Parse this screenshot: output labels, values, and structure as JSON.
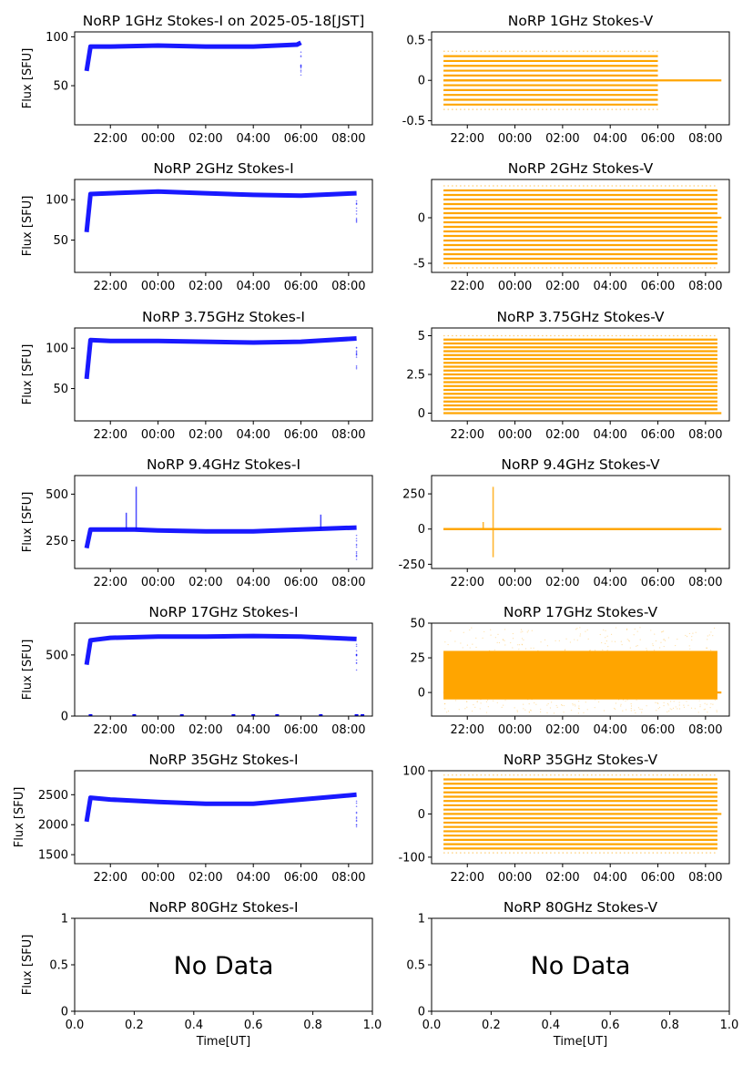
{
  "figure": {
    "x_tick_labels_time": [
      "22:00",
      "00:00",
      "02:00",
      "04:00",
      "06:00",
      "08:00"
    ],
    "x_tick_labels_unit": [
      "0.0",
      "0.2",
      "0.4",
      "0.6",
      "0.8",
      "1.0"
    ],
    "xlabel": "Time[UT]",
    "ylabel": "Flux [SFU]",
    "no_data_text": "No Data"
  },
  "colors": {
    "stokes_i": "#0000ff",
    "stokes_v": "#ffa500"
  },
  "chart_data": [
    {
      "type": "line",
      "title": "NoRP 1GHz Stokes-I on 2025-05-18[JST]",
      "ylabel": "Flux [SFU]",
      "x_range": [
        "20:30",
        "09:00"
      ],
      "ylim": [
        10,
        105
      ],
      "yticks": [
        50,
        100
      ],
      "series": [
        {
          "name": "",
          "x": [
            "21:00",
            "21:10",
            "22:00",
            "00:00",
            "02:00",
            "04:00",
            "05:50",
            "06:00"
          ],
          "values": [
            65,
            90,
            90,
            91,
            90,
            90,
            92,
            94
          ]
        }
      ]
    },
    {
      "type": "scatter",
      "title": "NoRP 1GHz Stokes-V",
      "x_range": [
        "20:30",
        "09:00"
      ],
      "ylim": [
        -0.55,
        0.6
      ],
      "yticks": [
        -0.5,
        0.0,
        0.5
      ],
      "levels": [
        -0.3,
        -0.24,
        -0.18,
        -0.12,
        -0.06,
        0,
        0.06,
        0.12,
        0.18,
        0.24,
        0.3
      ],
      "series": [
        {
          "name": "",
          "x_start": "21:00",
          "x_end": "06:00",
          "zero_to": "08:40"
        }
      ]
    },
    {
      "type": "line",
      "title": "NoRP 2GHz Stokes-I",
      "ylabel": "Flux [SFU]",
      "x_range": [
        "20:30",
        "09:00"
      ],
      "ylim": [
        10,
        125
      ],
      "yticks": [
        50,
        100
      ],
      "series": [
        {
          "name": "",
          "x": [
            "21:00",
            "21:10",
            "22:00",
            "00:00",
            "02:00",
            "04:00",
            "06:00",
            "08:20"
          ],
          "values": [
            60,
            107,
            108,
            110,
            108,
            106,
            105,
            108
          ]
        }
      ]
    },
    {
      "type": "scatter",
      "title": "NoRP 2GHz Stokes-V",
      "x_range": [
        "20:30",
        "09:00"
      ],
      "ylim": [
        -6,
        4.2
      ],
      "yticks": [
        -5,
        0
      ],
      "levels": [
        -5,
        -4.5,
        -4,
        -3.5,
        -3,
        -2.5,
        -2,
        -1.5,
        -1,
        -0.5,
        0,
        0.5,
        1,
        1.5,
        2,
        2.5,
        3
      ],
      "series": [
        {
          "name": "",
          "x_start": "21:00",
          "x_end": "08:30",
          "zero_to": "08:40"
        }
      ]
    },
    {
      "type": "line",
      "title": "NoRP 3.75GHz Stokes-I",
      "ylabel": "Flux [SFU]",
      "x_range": [
        "20:30",
        "09:00"
      ],
      "ylim": [
        10,
        125
      ],
      "yticks": [
        50,
        100
      ],
      "series": [
        {
          "name": "",
          "x": [
            "21:00",
            "21:10",
            "22:00",
            "00:00",
            "02:00",
            "04:00",
            "06:00",
            "08:20"
          ],
          "values": [
            62,
            110,
            109,
            109,
            108,
            107,
            108,
            112
          ]
        }
      ]
    },
    {
      "type": "scatter",
      "title": "NoRP 3.75GHz Stokes-V",
      "x_range": [
        "20:30",
        "09:00"
      ],
      "ylim": [
        -0.5,
        5.5
      ],
      "yticks": [
        0.0,
        2.5,
        5.0
      ],
      "levels": [
        0.25,
        0.5,
        0.75,
        1,
        1.25,
        1.5,
        1.75,
        2,
        2.25,
        2.5,
        2.75,
        3,
        3.25,
        3.5,
        3.75,
        4,
        4.25,
        4.5,
        4.75
      ],
      "series": [
        {
          "name": "",
          "x_start": "21:00",
          "x_end": "08:30",
          "zero_to": "08:40"
        }
      ]
    },
    {
      "type": "line",
      "title": "NoRP 9.4GHz Stokes-I",
      "ylabel": "Flux [SFU]",
      "x_range": [
        "20:30",
        "09:00"
      ],
      "ylim": [
        100,
        600
      ],
      "yticks": [
        250,
        500
      ],
      "series": [
        {
          "name": "",
          "x": [
            "21:00",
            "21:10",
            "22:00",
            "23:00",
            "00:00",
            "02:00",
            "04:00",
            "06:00",
            "08:20"
          ],
          "values": [
            210,
            310,
            310,
            310,
            305,
            300,
            300,
            310,
            320
          ]
        }
      ],
      "spikes": [
        {
          "x": "22:40",
          "value": 400
        },
        {
          "x": "23:05",
          "value": 540
        },
        {
          "x": "06:50",
          "value": 390
        }
      ]
    },
    {
      "type": "scatter",
      "title": "NoRP 9.4GHz Stokes-V",
      "x_range": [
        "20:30",
        "09:00"
      ],
      "ylim": [
        -280,
        380
      ],
      "yticks": [
        -250,
        0,
        250
      ],
      "levels": [
        0
      ],
      "series": [
        {
          "name": "",
          "x_start": "21:00",
          "x_end": "08:30",
          "zero_to": "08:40"
        }
      ],
      "spikes": [
        {
          "x": "22:40",
          "value": 50
        },
        {
          "x": "23:05",
          "value": -200
        },
        {
          "x": "23:05",
          "value": 300
        }
      ]
    },
    {
      "type": "line",
      "title": "NoRP 17GHz Stokes-I",
      "ylabel": "Flux [SFU]",
      "x_range": [
        "20:30",
        "09:00"
      ],
      "ylim": [
        0,
        760
      ],
      "yticks": [
        0,
        500
      ],
      "series": [
        {
          "name": "",
          "x": [
            "21:00",
            "21:10",
            "22:00",
            "00:00",
            "02:00",
            "04:00",
            "06:00",
            "08:20"
          ],
          "values": [
            420,
            620,
            640,
            650,
            650,
            655,
            650,
            630
          ]
        }
      ]
    },
    {
      "type": "scatter",
      "title": "NoRP 17GHz Stokes-V",
      "x_range": [
        "20:30",
        "09:00"
      ],
      "ylim": [
        -17,
        50
      ],
      "yticks": [
        0,
        25,
        50
      ],
      "band": [
        -5,
        30
      ],
      "series": [
        {
          "name": "",
          "x_start": "21:00",
          "x_end": "08:30",
          "zero_to": "08:40"
        }
      ]
    },
    {
      "type": "line",
      "title": "NoRP 35GHz Stokes-I",
      "ylabel": "Flux [SFU]",
      "x_range": [
        "20:30",
        "09:00"
      ],
      "ylim": [
        1350,
        2900
      ],
      "yticks": [
        1500,
        2000,
        2500
      ],
      "series": [
        {
          "name": "",
          "x": [
            "21:00",
            "21:10",
            "22:00",
            "00:00",
            "02:00",
            "04:00",
            "06:00",
            "08:20"
          ],
          "values": [
            2050,
            2450,
            2420,
            2380,
            2350,
            2350,
            2420,
            2500
          ]
        }
      ]
    },
    {
      "type": "scatter",
      "title": "NoRP 35GHz Stokes-V",
      "x_range": [
        "20:30",
        "09:00"
      ],
      "ylim": [
        -115,
        100
      ],
      "yticks": [
        -100,
        0,
        100
      ],
      "levels": [
        -80,
        -70,
        -60,
        -50,
        -40,
        -30,
        -20,
        -10,
        0,
        10,
        20,
        30,
        40,
        50,
        60,
        70,
        80
      ],
      "series": [
        {
          "name": "",
          "x_start": "21:00",
          "x_end": "08:30",
          "zero_to": "08:40"
        }
      ]
    },
    {
      "type": "empty",
      "title": "NoRP 80GHz Stokes-I",
      "ylabel": "Flux [SFU]",
      "xlabel": "Time[UT]",
      "xlim": [
        0,
        1
      ],
      "ylim": [
        0,
        1
      ],
      "yticks": [
        0.0,
        0.5,
        1.0
      ],
      "xticks": [
        0.0,
        0.2,
        0.4,
        0.6,
        0.8,
        1.0
      ],
      "annotation": "No Data"
    },
    {
      "type": "empty",
      "title": "NoRP 80GHz Stokes-V",
      "xlabel": "Time[UT]",
      "xlim": [
        0,
        1
      ],
      "ylim": [
        0,
        1
      ],
      "yticks": [
        0.0,
        0.5,
        1.0
      ],
      "xticks": [
        0.0,
        0.2,
        0.4,
        0.6,
        0.8,
        1.0
      ],
      "annotation": "No Data"
    }
  ]
}
